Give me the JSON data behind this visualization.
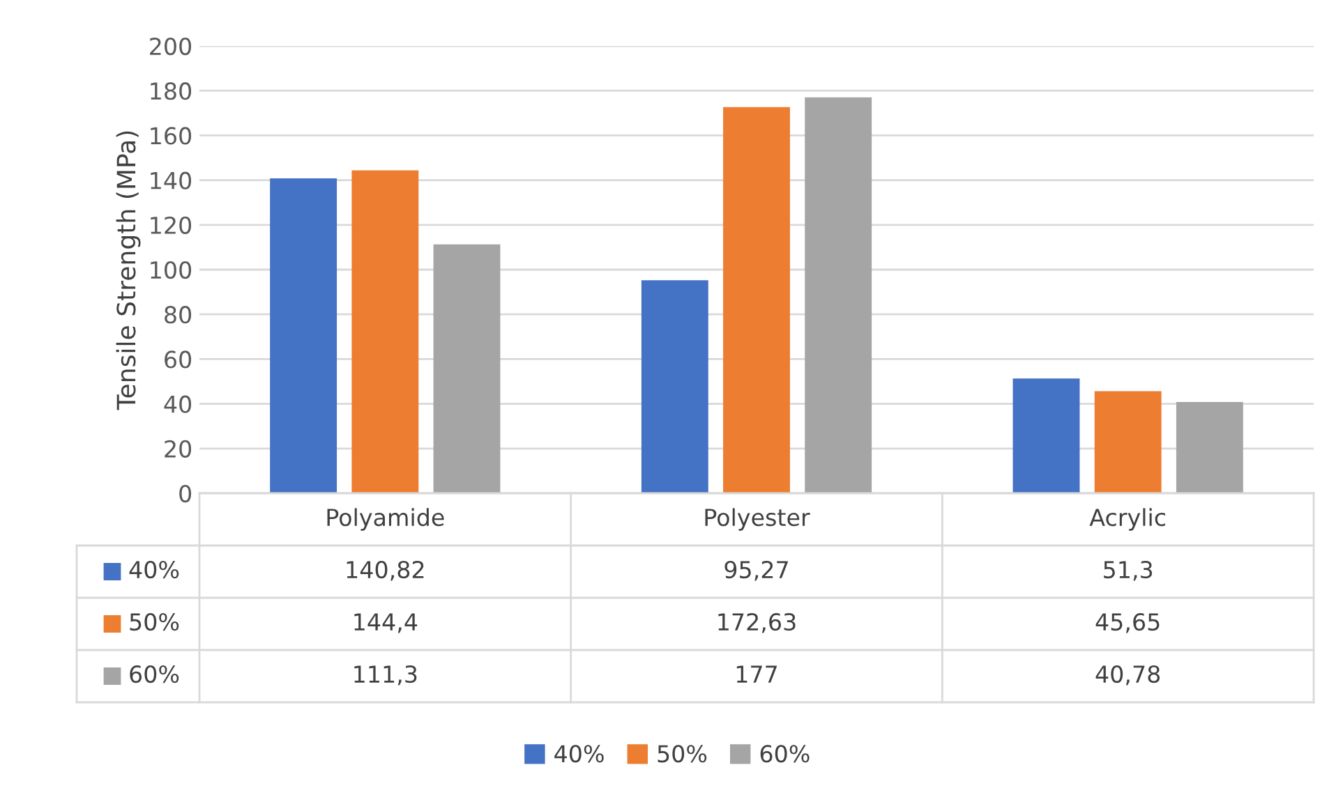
{
  "chart_data": {
    "type": "bar",
    "ylabel": "Tensile Strength (MPa)",
    "categories": [
      "Polyamide",
      "Polyester",
      "Acrylic"
    ],
    "series": [
      {
        "name": "40%",
        "color": "#4472c4",
        "values": [
          140.82,
          95.27,
          51.3
        ],
        "value_labels": [
          "140,82",
          "95,27",
          "51,3"
        ]
      },
      {
        "name": "50%",
        "color": "#ed7d31",
        "values": [
          144.4,
          172.63,
          45.65
        ],
        "value_labels": [
          "144,4",
          "172,63",
          "45,65"
        ]
      },
      {
        "name": "60%",
        "color": "#a5a5a5",
        "values": [
          111.3,
          177,
          40.78
        ],
        "value_labels": [
          "111,3",
          "177",
          "40,78"
        ]
      }
    ],
    "ylim": [
      0,
      200
    ],
    "yticks": [
      0,
      20,
      40,
      60,
      80,
      100,
      120,
      140,
      160,
      180,
      200
    ],
    "grid": "y",
    "legend": "bottom"
  }
}
